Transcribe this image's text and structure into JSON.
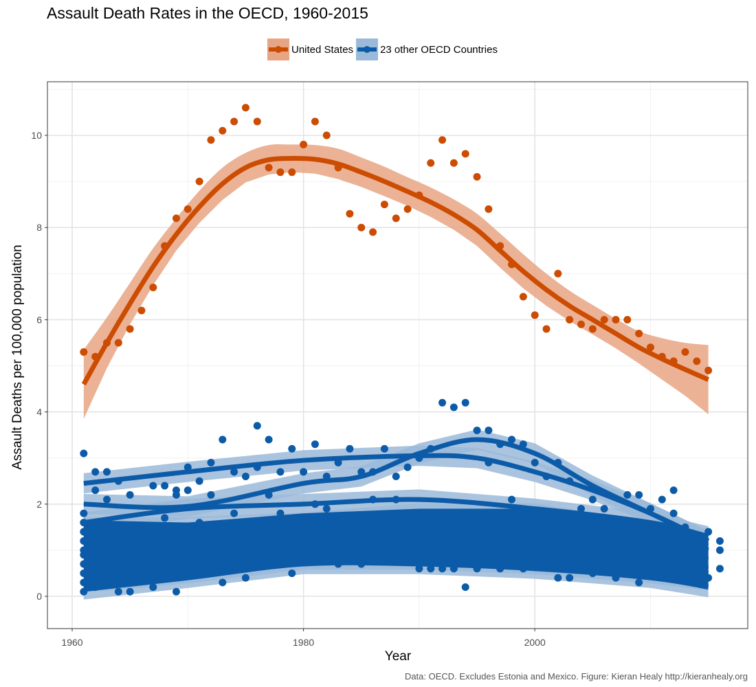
{
  "chart_data": {
    "type": "scatter",
    "title": "Assault Death Rates in the OECD, 1960-2015",
    "xlabel": "Year",
    "ylabel": "Assault Deaths per 100,000 population",
    "caption": "Data: OECD. Excludes Estonia and Mexico. Figure: Kieran Healy http://kieranhealy.org",
    "xlim": [
      1957,
      2018
    ],
    "ylim": [
      -0.7,
      11.1
    ],
    "x_ticks": [
      1960,
      1980,
      2000
    ],
    "y_ticks": [
      0,
      2,
      4,
      6,
      8,
      10
    ],
    "grid": true,
    "legend_position": "top",
    "legend": [
      {
        "label": "United States",
        "color": "#cc4c02",
        "band_color": "#e8a584"
      },
      {
        "label": "23 other OECD Countries",
        "color": "#0c5ba8",
        "band_color": "#9bbad9"
      }
    ],
    "series": [
      {
        "name": "United States",
        "color": "#cc4c02",
        "x": [
          1961,
          1962,
          1963,
          1964,
          1965,
          1966,
          1967,
          1968,
          1969,
          1970,
          1971,
          1972,
          1973,
          1974,
          1975,
          1976,
          1977,
          1978,
          1979,
          1980,
          1981,
          1982,
          1983,
          1984,
          1985,
          1986,
          1987,
          1988,
          1989,
          1990,
          1991,
          1992,
          1993,
          1994,
          1995,
          1996,
          1997,
          1998,
          1999,
          2000,
          2001,
          2002,
          2003,
          2004,
          2005,
          2006,
          2007,
          2008,
          2009,
          2010,
          2011,
          2012,
          2013,
          2014,
          2015
        ],
        "y": [
          5.3,
          5.2,
          5.5,
          5.5,
          5.8,
          6.2,
          6.7,
          7.6,
          8.2,
          8.4,
          9.0,
          9.9,
          10.1,
          10.3,
          10.6,
          10.3,
          9.3,
          9.2,
          9.2,
          9.8,
          10.3,
          10.0,
          9.3,
          8.3,
          8.0,
          7.9,
          8.5,
          8.2,
          8.4,
          8.7,
          9.4,
          9.9,
          9.4,
          9.6,
          9.1,
          8.4,
          7.6,
          7.2,
          6.5,
          6.1,
          5.8,
          7.0,
          6.0,
          5.9,
          5.8,
          6.0,
          6.0,
          6.0,
          5.7,
          5.4,
          5.2,
          5.1,
          5.3,
          5.1,
          4.9
        ],
        "smooth": {
          "x": [
            1961,
            1963,
            1965,
            1967,
            1969,
            1971,
            1973,
            1975,
            1977,
            1979,
            1981,
            1983,
            1985,
            1987,
            1989,
            1991,
            1993,
            1995,
            1997,
            1999,
            2001,
            2003,
            2005,
            2007,
            2009,
            2011,
            2013,
            2015
          ],
          "y": [
            4.6,
            5.5,
            6.35,
            7.15,
            7.85,
            8.45,
            8.95,
            9.3,
            9.47,
            9.5,
            9.48,
            9.38,
            9.2,
            9.0,
            8.78,
            8.55,
            8.28,
            7.95,
            7.5,
            7.05,
            6.65,
            6.3,
            6.0,
            5.7,
            5.4,
            5.15,
            4.92,
            4.7
          ],
          "lower": [
            3.85,
            4.95,
            5.9,
            6.75,
            7.5,
            8.1,
            8.6,
            8.98,
            9.15,
            9.2,
            9.17,
            9.05,
            8.88,
            8.68,
            8.47,
            8.23,
            7.95,
            7.6,
            7.13,
            6.68,
            6.3,
            5.97,
            5.68,
            5.38,
            5.05,
            4.7,
            4.35,
            3.95
          ],
          "upper": [
            5.35,
            6.05,
            6.8,
            7.55,
            8.2,
            8.8,
            9.3,
            9.62,
            9.79,
            9.8,
            9.79,
            9.71,
            9.52,
            9.32,
            9.09,
            8.87,
            8.61,
            8.3,
            7.87,
            7.42,
            7.0,
            6.63,
            6.32,
            6.02,
            5.75,
            5.6,
            5.5,
            5.45
          ]
        }
      },
      {
        "name": "23 other OECD Countries",
        "color": "#0c5ba8",
        "note": "approximate point cloud read from the figure (countries not individually labelled)",
        "x": [
          1961,
          1961,
          1961,
          1961,
          1961,
          1961,
          1961,
          1961,
          1961,
          1961,
          1961,
          1962,
          1962,
          1962,
          1962,
          1963,
          1963,
          1963,
          1964,
          1964,
          1965,
          1965,
          1966,
          1967,
          1967,
          1968,
          1968,
          1969,
          1969,
          1969,
          1970,
          1970,
          1971,
          1971,
          1972,
          1972,
          1973,
          1973,
          1974,
          1974,
          1975,
          1975,
          1976,
          1976,
          1977,
          1977,
          1978,
          1978,
          1979,
          1979,
          1980,
          1980,
          1981,
          1981,
          1982,
          1982,
          1983,
          1983,
          1984,
          1985,
          1985,
          1986,
          1986,
          1987,
          1987,
          1988,
          1988,
          1989,
          1990,
          1990,
          1991,
          1991,
          1992,
          1992,
          1993,
          1993,
          1994,
          1994,
          1995,
          1995,
          1996,
          1996,
          1997,
          1997,
          1998,
          1998,
          1999,
          1999,
          2000,
          2000,
          2001,
          2001,
          2002,
          2002,
          2003,
          2003,
          2004,
          2005,
          2005,
          2006,
          2007,
          2007,
          2008,
          2009,
          2009,
          2010,
          2011,
          2011,
          2012,
          2012,
          2013,
          2014,
          2014,
          2015,
          2015,
          2016,
          2016,
          2016
        ],
        "y": [
          3.1,
          1.8,
          1.6,
          1.4,
          1.2,
          1.0,
          0.9,
          0.7,
          0.5,
          0.3,
          0.1,
          2.7,
          2.3,
          1.5,
          0.2,
          2.7,
          2.1,
          0.4,
          2.5,
          0.1,
          2.2,
          0.1,
          1.4,
          2.4,
          0.2,
          2.4,
          1.7,
          2.3,
          0.1,
          2.2,
          2.3,
          2.8,
          2.5,
          1.6,
          2.9,
          2.2,
          3.4,
          0.3,
          2.7,
          1.8,
          2.6,
          0.4,
          3.7,
          2.8,
          3.4,
          2.2,
          2.7,
          1.8,
          3.2,
          0.5,
          2.7,
          1.0,
          3.3,
          2.0,
          2.6,
          1.9,
          2.9,
          0.7,
          3.2,
          2.7,
          0.7,
          2.7,
          2.1,
          3.2,
          0.8,
          2.6,
          2.1,
          2.8,
          3.0,
          0.6,
          3.2,
          0.6,
          4.2,
          0.6,
          4.1,
          0.6,
          4.2,
          0.2,
          3.6,
          0.6,
          3.6,
          2.9,
          3.3,
          0.6,
          3.4,
          2.1,
          3.3,
          0.6,
          2.9,
          1.8,
          2.6,
          0.7,
          2.9,
          0.4,
          2.5,
          0.4,
          1.9,
          2.1,
          0.5,
          1.9,
          1.6,
          0.4,
          2.2,
          2.2,
          0.3,
          1.9,
          2.1,
          0.4,
          2.3,
          1.8,
          1.5,
          1.3,
          0.3,
          1.4,
          0.4,
          1.2,
          1.0,
          0.6
        ],
        "smooth_lines": [
          {
            "x": [
              1961,
              1970,
              1980,
              1990,
              1995,
              2000,
              2005,
              2010,
              2015
            ],
            "y": [
              2.45,
              2.7,
              2.95,
              3.05,
              3.0,
              2.7,
              2.3,
              1.8,
              1.2
            ]
          },
          {
            "x": [
              1961,
              1970,
              1980,
              1985,
              1990,
              1995,
              2000,
              2005,
              2010,
              2015
            ],
            "y": [
              2.0,
              1.95,
              2.45,
              2.6,
              3.1,
              3.4,
              3.1,
              2.4,
              1.8,
              1.2
            ]
          },
          {
            "x": [
              1961,
              1970,
              1980,
              1990,
              2000,
              2010,
              2015
            ],
            "y": [
              1.6,
              1.9,
              2.0,
              2.1,
              1.9,
              1.6,
              1.3
            ]
          },
          {
            "x": [
              1961,
              1970,
              1980,
              1990,
              2000,
              2010,
              2015
            ],
            "y": [
              1.5,
              1.5,
              1.6,
              1.8,
              1.8,
              1.4,
              1.0
            ]
          },
          {
            "x": [
              1961,
              1970,
              1980,
              1990,
              2000,
              2010,
              2015
            ],
            "y": [
              1.3,
              1.4,
              1.5,
              1.6,
              1.6,
              1.3,
              1.1
            ]
          },
          {
            "x": [
              1961,
              1970,
              1980,
              1990,
              2000,
              2010,
              2015
            ],
            "y": [
              1.1,
              1.2,
              1.3,
              1.4,
              1.4,
              1.2,
              1.0
            ]
          },
          {
            "x": [
              1961,
              1970,
              1980,
              1990,
              2000,
              2010,
              2015
            ],
            "y": [
              0.9,
              1.0,
              1.2,
              1.3,
              1.2,
              1.0,
              0.8
            ]
          },
          {
            "x": [
              1961,
              1970,
              1980,
              1990,
              2000,
              2010,
              2015
            ],
            "y": [
              0.7,
              0.9,
              1.1,
              1.1,
              1.0,
              0.8,
              0.6
            ]
          },
          {
            "x": [
              1961,
              1970,
              1980,
              1990,
              2000,
              2010,
              2015
            ],
            "y": [
              0.5,
              0.7,
              0.9,
              1.0,
              0.9,
              0.7,
              0.5
            ]
          },
          {
            "x": [
              1961,
              1970,
              1980,
              1990,
              2000,
              2010,
              2015
            ],
            "y": [
              0.3,
              0.5,
              0.8,
              0.8,
              0.7,
              0.5,
              0.35
            ]
          },
          {
            "x": [
              1961,
              1970,
              1980,
              1990,
              2000,
              2010,
              2015
            ],
            "y": [
              0.15,
              0.4,
              0.7,
              0.7,
              0.6,
              0.4,
              0.2
            ]
          }
        ]
      }
    ]
  }
}
